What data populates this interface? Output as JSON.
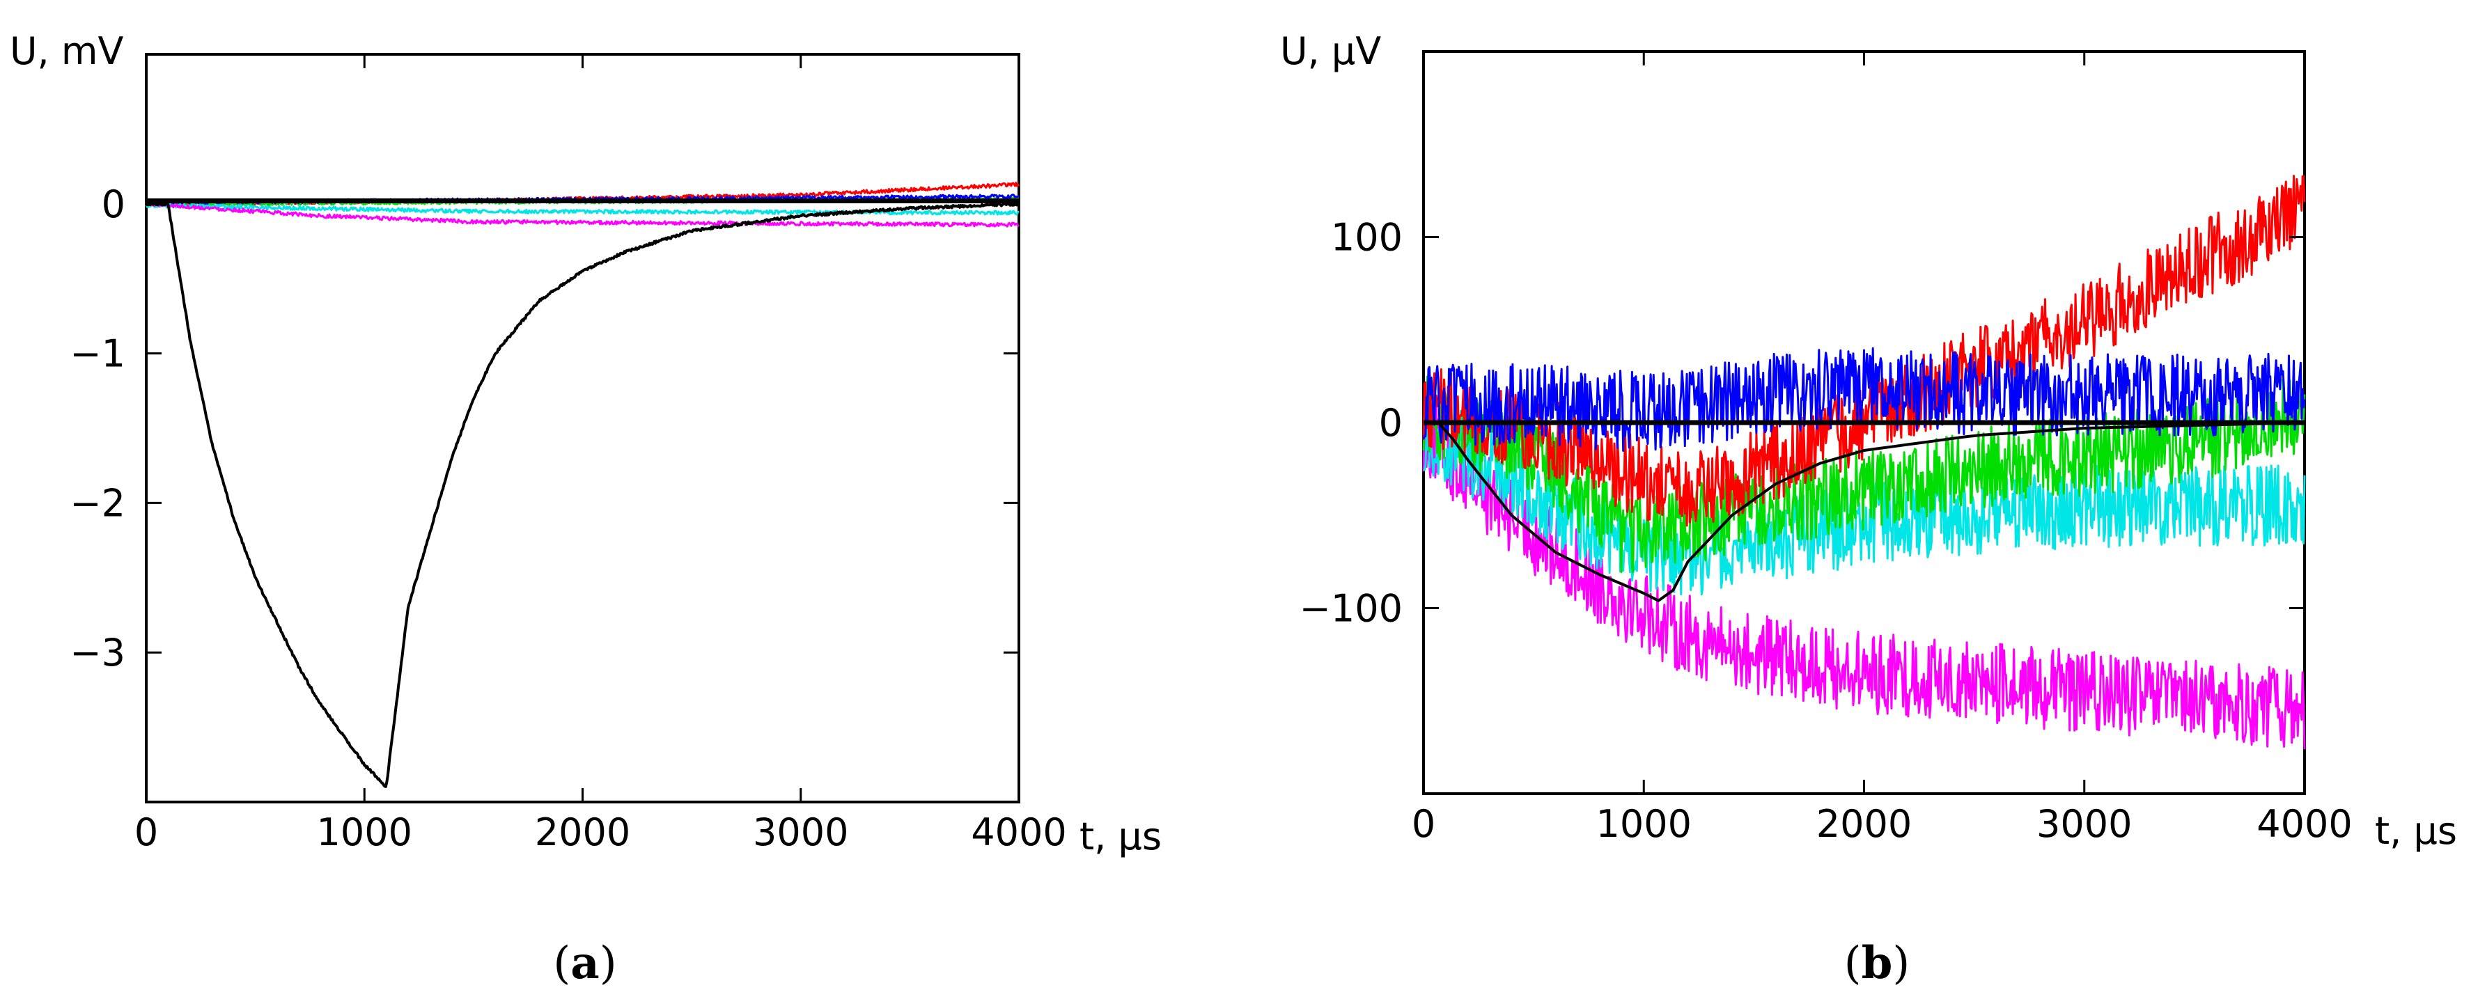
{
  "chart_data": [
    {
      "type": "line",
      "caption_open": "(",
      "caption_letter": "a",
      "caption_close": ")",
      "ylabel": "U, mV",
      "xlabel": "t, µs",
      "xlim": [
        0,
        4000
      ],
      "ylim": [
        -4,
        1
      ],
      "xticks": [
        0,
        1000,
        2000,
        3000,
        4000
      ],
      "xtick_labels": [
        "0",
        "1000",
        "2000",
        "3000",
        "4000"
      ],
      "yticks": [
        -3,
        -2,
        -1,
        0
      ],
      "ytick_labels": [
        "−3",
        "−2",
        "−1",
        "0"
      ],
      "series": [
        {
          "name": "red",
          "color": "#ff0000",
          "noise": 0.012,
          "points": [
            [
              0,
              0
            ],
            [
              1500,
              0.02
            ],
            [
              3000,
              0.06
            ],
            [
              4000,
              0.13
            ]
          ]
        },
        {
          "name": "green",
          "color": "#00dd00",
          "noise": 0.012,
          "points": [
            [
              0,
              0
            ],
            [
              4000,
              0.03
            ]
          ]
        },
        {
          "name": "blue",
          "color": "#0000ff",
          "noise": 0.012,
          "points": [
            [
              0,
              0.01
            ],
            [
              4000,
              0.05
            ]
          ]
        },
        {
          "name": "cyan",
          "color": "#00e5e5",
          "noise": 0.012,
          "points": [
            [
              0,
              -0.01
            ],
            [
              1500,
              -0.05
            ],
            [
              4000,
              -0.06
            ]
          ]
        },
        {
          "name": "magenta",
          "color": "#ff00ff",
          "noise": 0.012,
          "points": [
            [
              0,
              0
            ],
            [
              800,
              -0.08
            ],
            [
              1500,
              -0.12
            ],
            [
              4000,
              -0.14
            ]
          ]
        },
        {
          "name": "black-baseline",
          "color": "#000000",
          "noise": 0,
          "points": [
            [
              0,
              0.02
            ],
            [
              4000,
              0.02
            ]
          ]
        },
        {
          "name": "black-signal",
          "color": "#000000",
          "noise": 0.008,
          "points": [
            [
              0,
              0
            ],
            [
              100,
              0
            ],
            [
              200,
              -0.9
            ],
            [
              300,
              -1.6
            ],
            [
              400,
              -2.1
            ],
            [
              500,
              -2.5
            ],
            [
              600,
              -2.8
            ],
            [
              700,
              -3.1
            ],
            [
              800,
              -3.35
            ],
            [
              900,
              -3.55
            ],
            [
              1000,
              -3.75
            ],
            [
              1100,
              -3.9
            ],
            [
              1150,
              -3.3
            ],
            [
              1200,
              -2.7
            ],
            [
              1300,
              -2.2
            ],
            [
              1400,
              -1.7
            ],
            [
              1500,
              -1.3
            ],
            [
              1600,
              -1.0
            ],
            [
              1800,
              -0.65
            ],
            [
              2000,
              -0.45
            ],
            [
              2200,
              -0.32
            ],
            [
              2500,
              -0.18
            ],
            [
              3000,
              -0.08
            ],
            [
              3500,
              -0.03
            ],
            [
              4000,
              0.0
            ]
          ]
        }
      ]
    },
    {
      "type": "line",
      "caption_open": "(",
      "caption_letter": "b",
      "caption_close": ")",
      "ylabel": "U, µV",
      "xlabel": "t, µs",
      "xlim": [
        0,
        4000
      ],
      "ylim": [
        -200,
        200
      ],
      "xticks": [
        0,
        1000,
        2000,
        3000,
        4000
      ],
      "xtick_labels": [
        "0",
        "1000",
        "2000",
        "3000",
        "4000"
      ],
      "yticks": [
        -100,
        0,
        100
      ],
      "ytick_labels": [
        "−100",
        "0",
        "100"
      ],
      "series": [
        {
          "name": "magenta",
          "color": "#ff00ff",
          "noise": 22,
          "points": [
            [
              0,
              -5
            ],
            [
              300,
              -40
            ],
            [
              600,
              -70
            ],
            [
              900,
              -95
            ],
            [
              1200,
              -115
            ],
            [
              1500,
              -125
            ],
            [
              2000,
              -135
            ],
            [
              3000,
              -145
            ],
            [
              4000,
              -155
            ]
          ]
        },
        {
          "name": "cyan",
          "color": "#00e5e5",
          "noise": 22,
          "points": [
            [
              0,
              -5
            ],
            [
              400,
              -30
            ],
            [
              800,
              -60
            ],
            [
              1100,
              -75
            ],
            [
              1500,
              -65
            ],
            [
              2000,
              -55
            ],
            [
              3000,
              -45
            ],
            [
              4000,
              -45
            ]
          ]
        },
        {
          "name": "green",
          "color": "#00dd00",
          "noise": 22,
          "points": [
            [
              0,
              5
            ],
            [
              500,
              -15
            ],
            [
              900,
              -60
            ],
            [
              1200,
              -55
            ],
            [
              1800,
              -40
            ],
            [
              2500,
              -25
            ],
            [
              3500,
              -10
            ],
            [
              4000,
              5
            ]
          ]
        },
        {
          "name": "red",
          "color": "#ff0000",
          "noise": 22,
          "points": [
            [
              0,
              10
            ],
            [
              500,
              -5
            ],
            [
              800,
              -20
            ],
            [
              1200,
              -40
            ],
            [
              1500,
              -25
            ],
            [
              2000,
              0
            ],
            [
              2500,
              30
            ],
            [
              3000,
              55
            ],
            [
              3500,
              85
            ],
            [
              4000,
              115
            ]
          ]
        },
        {
          "name": "blue",
          "color": "#0000ff",
          "noise": 22,
          "points": [
            [
              0,
              10
            ],
            [
              500,
              10
            ],
            [
              1000,
              5
            ],
            [
              1500,
              15
            ],
            [
              2000,
              20
            ],
            [
              2500,
              15
            ],
            [
              3000,
              15
            ],
            [
              4000,
              15
            ]
          ]
        },
        {
          "name": "black-baseline",
          "color": "#000000",
          "noise": 0,
          "points": [
            [
              0,
              0
            ],
            [
              4000,
              0
            ]
          ]
        },
        {
          "name": "black-signal",
          "color": "#000000",
          "noise": 0,
          "points": [
            [
              0,
              0
            ],
            [
              80,
              0
            ],
            [
              200,
              -20
            ],
            [
              400,
              -50
            ],
            [
              600,
              -70
            ],
            [
              800,
              -82
            ],
            [
              1000,
              -92
            ],
            [
              1100,
              -98
            ],
            [
              1200,
              -75
            ],
            [
              1400,
              -50
            ],
            [
              1600,
              -33
            ],
            [
              1800,
              -22
            ],
            [
              2000,
              -15
            ],
            [
              2500,
              -7
            ],
            [
              3000,
              -3
            ],
            [
              4000,
              0
            ]
          ]
        }
      ]
    }
  ]
}
